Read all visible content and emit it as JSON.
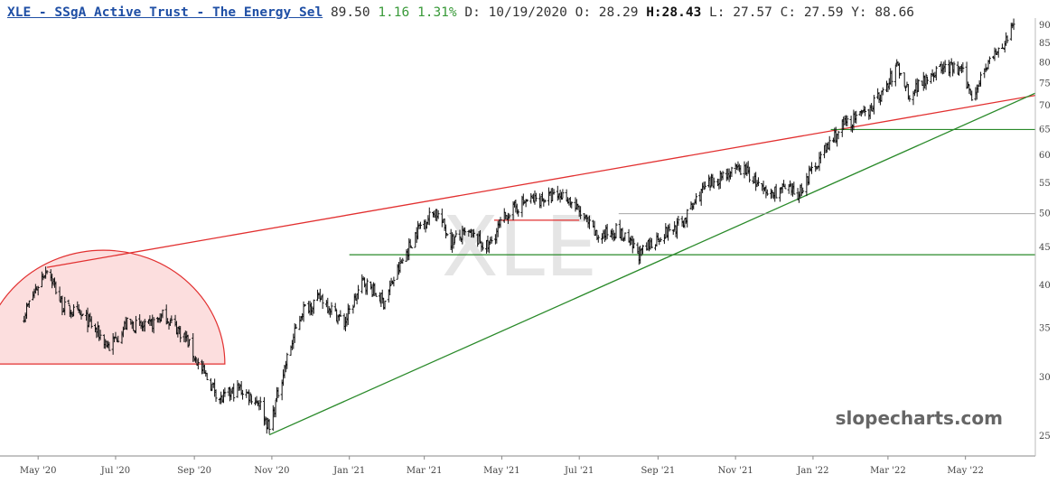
{
  "header": {
    "title": "XLE - SSgA Active Trust - The Energy Sel",
    "last": "89.50",
    "change": "1.16",
    "change_pct": "1.31%",
    "date": "D: 10/19/2020",
    "open": "O: 28.29",
    "high_label": "H:",
    "high_value": "28.43",
    "low": "L: 27.57",
    "close": "C: 27.59",
    "y_readout": "Y: 88.66"
  },
  "watermark": "XLE",
  "brand": "slopecharts.com",
  "colors": {
    "bars": "#111111",
    "resistance_line": "#e23030",
    "support_line": "#2a8a2a",
    "horizontal_green": "#2a8a2a",
    "horizontal_red": "#e23030",
    "horizontal_gray": "#999999",
    "arc_fill": "#fcd8d8",
    "arc_stroke": "#e23030",
    "change_text": "#3a9a3a",
    "title_link": "#1f4fa5"
  },
  "chart_data": {
    "type": "ohlc",
    "scale": "log",
    "ylim": [
      23.5,
      92
    ],
    "xlim": [
      "2020-04-01",
      "2022-06-25"
    ],
    "y_ticks": [
      25,
      30,
      35,
      40,
      45,
      50,
      55,
      60,
      65,
      70,
      75,
      80,
      85,
      90
    ],
    "x_ticks": [
      {
        "label": "May '20",
        "date": "2020-05-01"
      },
      {
        "label": "Jul '20",
        "date": "2020-07-01"
      },
      {
        "label": "Sep '20",
        "date": "2020-09-01"
      },
      {
        "label": "Nov '20",
        "date": "2020-11-01"
      },
      {
        "label": "Jan '21",
        "date": "2021-01-01"
      },
      {
        "label": "Mar '21",
        "date": "2021-03-01"
      },
      {
        "label": "May '21",
        "date": "2021-05-01"
      },
      {
        "label": "Jul '21",
        "date": "2021-07-01"
      },
      {
        "label": "Sep '21",
        "date": "2021-09-01"
      },
      {
        "label": "Nov '21",
        "date": "2021-11-01"
      },
      {
        "label": "Jan '22",
        "date": "2022-01-01"
      },
      {
        "label": "Mar '22",
        "date": "2022-03-01"
      },
      {
        "label": "May '22",
        "date": "2022-05-01"
      }
    ],
    "price_path": [
      [
        "2020-04-20",
        36.5
      ],
      [
        "2020-05-08",
        42.3
      ],
      [
        "2020-05-20",
        37.5
      ],
      [
        "2020-06-08",
        36.0
      ],
      [
        "2020-06-26",
        33.0
      ],
      [
        "2020-07-10",
        35.5
      ],
      [
        "2020-07-25",
        35.0
      ],
      [
        "2020-08-08",
        36.5
      ],
      [
        "2020-08-25",
        34.0
      ],
      [
        "2020-09-05",
        31.0
      ],
      [
        "2020-09-22",
        28.0
      ],
      [
        "2020-10-06",
        29.0
      ],
      [
        "2020-10-22",
        27.8
      ],
      [
        "2020-10-30",
        25.5
      ],
      [
        "2020-11-10",
        30.5
      ],
      [
        "2020-11-25",
        37.0
      ],
      [
        "2020-12-10",
        38.5
      ],
      [
        "2020-12-28",
        35.5
      ],
      [
        "2021-01-12",
        40.5
      ],
      [
        "2021-01-28",
        38.0
      ],
      [
        "2021-02-10",
        42.5
      ],
      [
        "2021-02-25",
        48.0
      ],
      [
        "2021-03-10",
        50.5
      ],
      [
        "2021-03-22",
        46.0
      ],
      [
        "2021-04-05",
        47.0
      ],
      [
        "2021-04-20",
        45.0
      ],
      [
        "2021-05-05",
        50.0
      ],
      [
        "2021-05-20",
        52.0
      ],
      [
        "2021-06-05",
        52.5
      ],
      [
        "2021-06-20",
        53.0
      ],
      [
        "2021-07-02",
        50.0
      ],
      [
        "2021-07-15",
        46.5
      ],
      [
        "2021-07-30",
        47.5
      ],
      [
        "2021-08-18",
        44.0
      ],
      [
        "2021-09-01",
        46.5
      ],
      [
        "2021-09-20",
        48.5
      ],
      [
        "2021-10-05",
        53.5
      ],
      [
        "2021-10-22",
        56.5
      ],
      [
        "2021-11-08",
        57.5
      ],
      [
        "2021-11-25",
        53.0
      ],
      [
        "2021-12-08",
        54.0
      ],
      [
        "2021-12-20",
        53.0
      ],
      [
        "2022-01-05",
        59.0
      ],
      [
        "2022-01-25",
        66.0
      ],
      [
        "2022-02-10",
        68.0
      ],
      [
        "2022-02-28",
        74.0
      ],
      [
        "2022-03-08",
        79.5
      ],
      [
        "2022-03-18",
        72.5
      ],
      [
        "2022-04-01",
        77.0
      ],
      [
        "2022-04-15",
        79.0
      ],
      [
        "2022-04-28",
        78.0
      ],
      [
        "2022-05-06",
        72.0
      ],
      [
        "2022-05-18",
        80.0
      ],
      [
        "2022-05-28",
        83.0
      ],
      [
        "2022-06-08",
        89.5
      ]
    ],
    "annotations": [
      {
        "kind": "trendline",
        "name": "resistance",
        "color": "red",
        "from": [
          "2020-05-08",
          42.3
        ],
        "to": [
          "2022-06-25",
          72.3
        ]
      },
      {
        "kind": "trendline",
        "name": "support",
        "color": "green",
        "from": [
          "2020-10-30",
          25.1
        ],
        "to": [
          "2022-06-25",
          72.8
        ]
      },
      {
        "kind": "hline",
        "name": "support-44",
        "color": "green",
        "y": 44,
        "from": "2021-01-01"
      },
      {
        "kind": "hline",
        "name": "support-65",
        "color": "green",
        "y": 65,
        "from": "2022-01-15"
      },
      {
        "kind": "hline",
        "name": "level-50",
        "color": "gray",
        "y": 50,
        "from": "2021-08-01"
      },
      {
        "kind": "hline",
        "name": "level-49",
        "color": "red",
        "y": 49,
        "from": "2021-04-25",
        "to": "2021-07-01"
      },
      {
        "kind": "arc",
        "name": "rounded-top",
        "color": "red",
        "from": "2020-03-18",
        "to": "2020-09-25",
        "y": 31.3
      }
    ]
  }
}
